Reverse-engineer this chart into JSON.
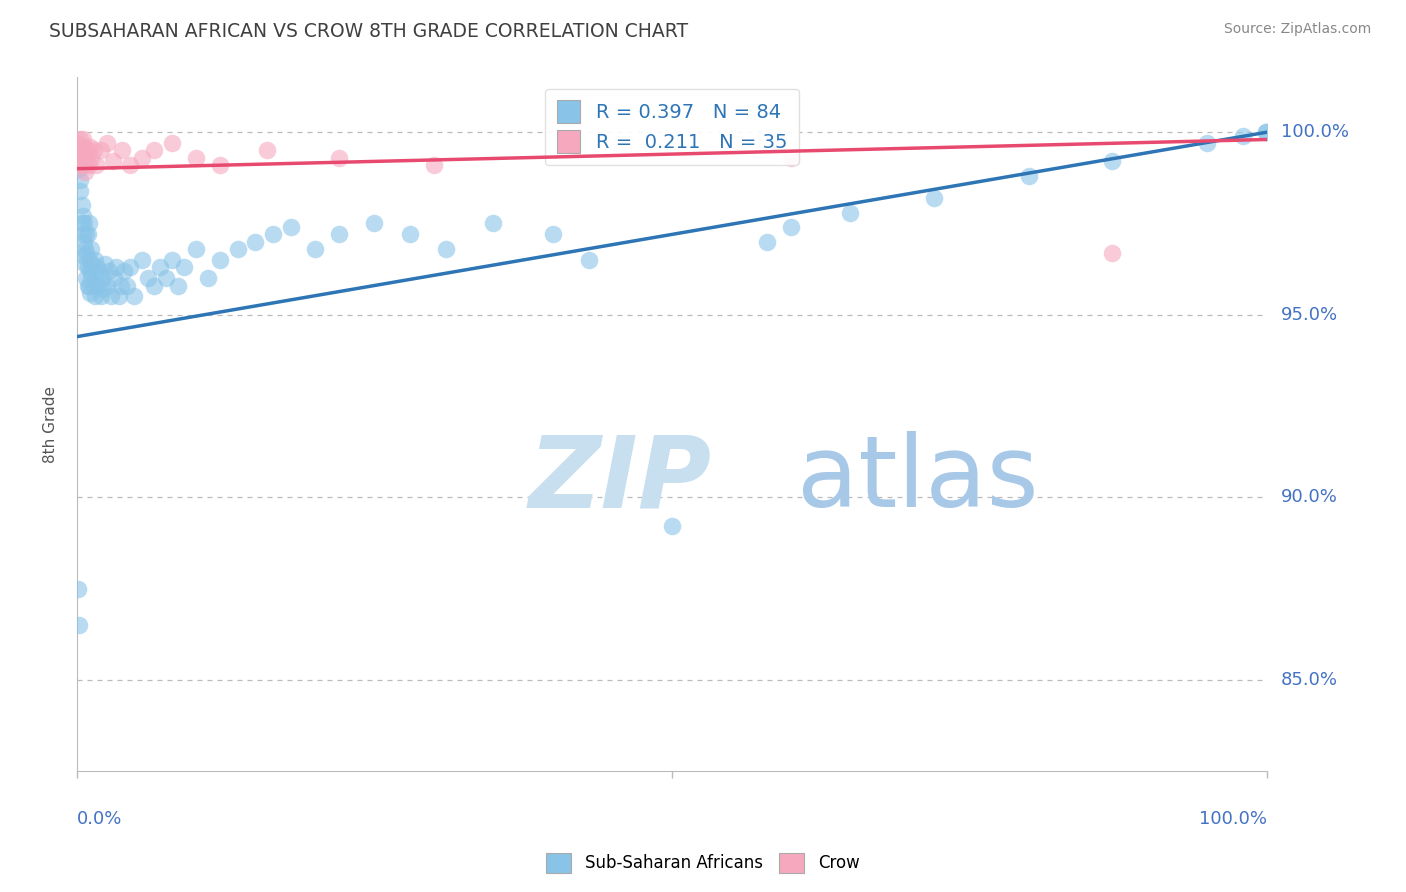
{
  "title": "SUBSAHARAN AFRICAN VS CROW 8TH GRADE CORRELATION CHART",
  "source": "Source: ZipAtlas.com",
  "ylabel": "8th Grade",
  "blue_R": 0.397,
  "blue_N": 84,
  "pink_R": 0.211,
  "pink_N": 35,
  "blue_color": "#89C4E8",
  "pink_color": "#F5A8BE",
  "blue_line_color": "#2E75B6",
  "pink_line_color": "#E84A6F",
  "legend_blue_label": "Sub-Saharan Africans",
  "legend_pink_label": "Crow",
  "ytick_labels": [
    "85.0%",
    "90.0%",
    "95.0%",
    "100.0%"
  ],
  "ytick_values": [
    0.85,
    0.9,
    0.95,
    1.0
  ],
  "xlim": [
    0.0,
    1.0
  ],
  "ylim": [
    0.825,
    1.015
  ],
  "blue_trendline_x": [
    0.0,
    1.0
  ],
  "blue_trendline_y": [
    0.944,
    1.0
  ],
  "pink_trendline_x": [
    0.0,
    1.0
  ],
  "pink_trendline_y": [
    0.99,
    0.998
  ],
  "watermark_zip": "ZIP",
  "watermark_atlas": "atlas",
  "watermark_color_zip": "#C8DFF0",
  "watermark_color_atlas": "#A8C8E8",
  "background_color": "#FFFFFF",
  "grid_color": "#CCCCCC",
  "tick_color": "#4472C4",
  "title_color": "#404040",
  "source_color": "#888888",
  "blue_x": [
    0.002,
    0.003,
    0.003,
    0.004,
    0.004,
    0.005,
    0.005,
    0.006,
    0.006,
    0.006,
    0.007,
    0.007,
    0.008,
    0.008,
    0.008,
    0.009,
    0.009,
    0.009,
    0.01,
    0.01,
    0.01,
    0.011,
    0.011,
    0.012,
    0.012,
    0.013,
    0.014,
    0.015,
    0.015,
    0.016,
    0.017,
    0.018,
    0.019,
    0.02,
    0.021,
    0.022,
    0.024,
    0.025,
    0.027,
    0.029,
    0.031,
    0.033,
    0.035,
    0.037,
    0.04,
    0.042,
    0.045,
    0.048,
    0.055,
    0.06,
    0.065,
    0.07,
    0.075,
    0.08,
    0.085,
    0.09,
    0.1,
    0.11,
    0.12,
    0.135,
    0.15,
    0.165,
    0.18,
    0.2,
    0.22,
    0.25,
    0.28,
    0.31,
    0.35,
    0.4,
    0.43,
    0.5,
    0.58,
    0.6,
    0.65,
    0.72,
    0.8,
    0.87,
    0.95,
    0.98,
    0.999,
    0.999,
    0.001,
    0.002
  ],
  "blue_y": [
    0.99,
    0.987,
    0.984,
    0.98,
    0.975,
    0.977,
    0.972,
    0.97,
    0.966,
    0.975,
    0.968,
    0.964,
    0.972,
    0.967,
    0.96,
    0.963,
    0.958,
    0.972,
    0.965,
    0.958,
    0.975,
    0.962,
    0.956,
    0.968,
    0.96,
    0.964,
    0.958,
    0.965,
    0.955,
    0.96,
    0.963,
    0.958,
    0.962,
    0.955,
    0.96,
    0.957,
    0.964,
    0.958,
    0.962,
    0.955,
    0.96,
    0.963,
    0.955,
    0.958,
    0.962,
    0.958,
    0.963,
    0.955,
    0.965,
    0.96,
    0.958,
    0.963,
    0.96,
    0.965,
    0.958,
    0.963,
    0.968,
    0.96,
    0.965,
    0.968,
    0.97,
    0.972,
    0.974,
    0.968,
    0.972,
    0.975,
    0.972,
    0.968,
    0.975,
    0.972,
    0.965,
    0.892,
    0.97,
    0.974,
    0.978,
    0.982,
    0.988,
    0.992,
    0.997,
    0.999,
    1.0,
    1.0,
    0.875,
    0.865
  ],
  "pink_x": [
    0.001,
    0.002,
    0.002,
    0.003,
    0.003,
    0.004,
    0.004,
    0.005,
    0.005,
    0.006,
    0.006,
    0.007,
    0.007,
    0.008,
    0.009,
    0.01,
    0.011,
    0.012,
    0.014,
    0.016,
    0.02,
    0.025,
    0.03,
    0.038,
    0.045,
    0.055,
    0.065,
    0.08,
    0.1,
    0.12,
    0.16,
    0.22,
    0.3,
    0.6,
    0.87
  ],
  "pink_y": [
    0.997,
    0.995,
    0.992,
    0.998,
    0.993,
    0.996,
    0.991,
    0.998,
    0.993,
    0.996,
    0.991,
    0.995,
    0.989,
    0.992,
    0.995,
    0.991,
    0.996,
    0.993,
    0.995,
    0.991,
    0.995,
    0.997,
    0.992,
    0.995,
    0.991,
    0.993,
    0.995,
    0.997,
    0.993,
    0.991,
    0.995,
    0.993,
    0.991,
    0.993,
    0.967
  ]
}
